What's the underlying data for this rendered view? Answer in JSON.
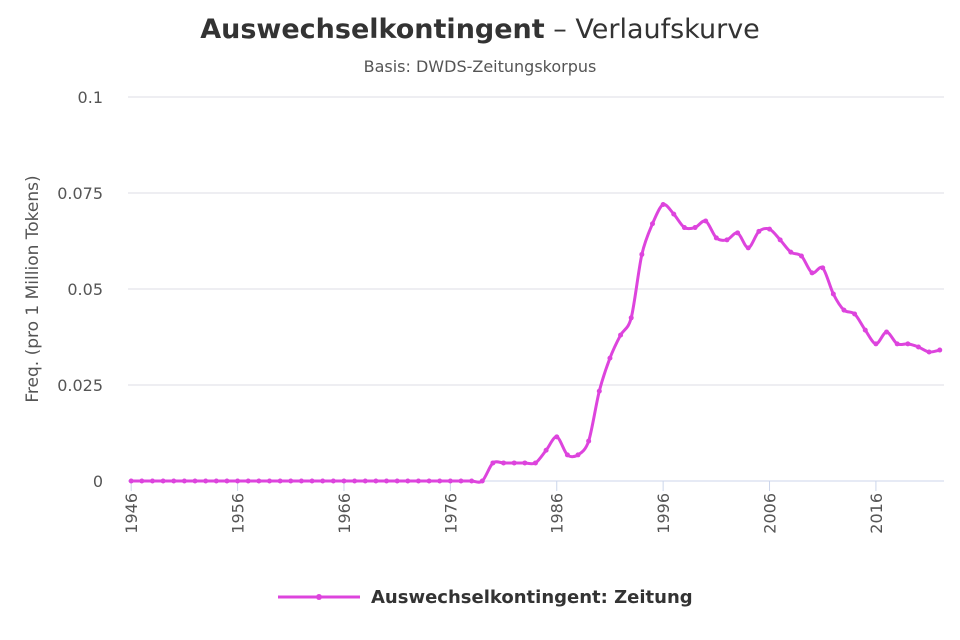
{
  "chart_data": {
    "type": "line",
    "title": [
      "Auswechselkontingent",
      " – Verlaufskurve"
    ],
    "subtitle": "Basis: DWDS-Zeitungskorpus",
    "y_label": "Freq. (pro 1 Million Tokens)",
    "x": [
      1946,
      1947,
      1948,
      1949,
      1950,
      1951,
      1952,
      1953,
      1954,
      1955,
      1956,
      1957,
      1958,
      1959,
      1960,
      1961,
      1962,
      1963,
      1964,
      1965,
      1966,
      1967,
      1968,
      1969,
      1970,
      1971,
      1972,
      1973,
      1974,
      1975,
      1976,
      1977,
      1978,
      1979,
      1980,
      1981,
      1982,
      1983,
      1984,
      1985,
      1986,
      1987,
      1988,
      1989,
      1990,
      1991,
      1992,
      1993,
      1994,
      1995,
      1996,
      1997,
      1998,
      1999,
      2000,
      2001,
      2002,
      2003,
      2004,
      2005,
      2006,
      2007,
      2008,
      2009,
      2010,
      2011,
      2012,
      2013,
      2014,
      2015,
      2016,
      2017,
      2018,
      2019,
      2020,
      2021,
      2022
    ],
    "series": [
      {
        "name": "Auswechselkontingent: Zeitung",
        "color": "#dd44dd",
        "values": [
          0,
          0,
          0,
          0,
          0,
          0,
          0,
          0,
          0,
          0,
          0,
          0,
          0,
          0,
          0,
          0,
          0,
          0,
          0,
          0,
          0,
          0,
          0,
          0,
          0,
          0,
          0,
          0,
          0,
          0,
          0,
          0,
          0,
          0,
          0.0047,
          0.0047,
          0.0047,
          0.0047,
          0.0047,
          0.008,
          0.0115,
          0.0068,
          0.0068,
          0.0104,
          0.0234,
          0.032,
          0.038,
          0.0425,
          0.059,
          0.067,
          0.072,
          0.0695,
          0.066,
          0.066,
          0.0677,
          0.0633,
          0.0628,
          0.0646,
          0.0607,
          0.065,
          0.0656,
          0.0628,
          0.0596,
          0.0586,
          0.0542,
          0.0555,
          0.0487,
          0.0445,
          0.0435,
          0.0393,
          0.0357,
          0.0388,
          0.0357,
          0.0357,
          0.0349,
          0.0336,
          0.0341
        ]
      }
    ],
    "xlim": [
      1945.7,
      2022.4
    ],
    "xticks": [
      1946,
      1956,
      1966,
      1976,
      1986,
      1996,
      2006,
      2016
    ],
    "ylim": [
      0,
      0.1
    ],
    "yticks": [
      0,
      0.025,
      0.05,
      0.075,
      0.1
    ],
    "grid": true,
    "legend": "bottom"
  }
}
